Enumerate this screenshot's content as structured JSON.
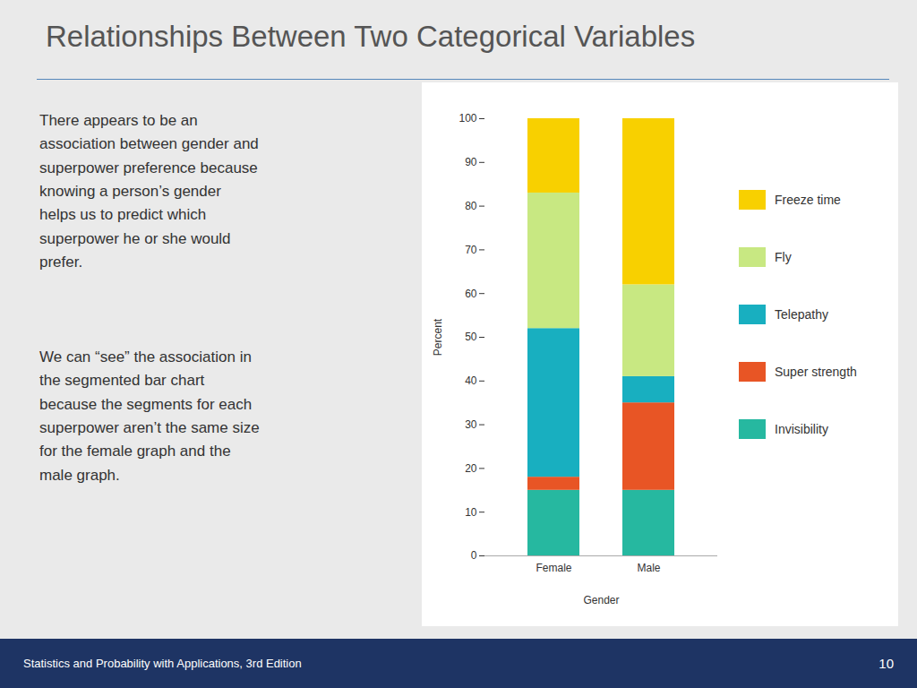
{
  "chart_data": {
    "type": "bar",
    "title": "Relationships Between Two Categorical Variables",
    "stacked": true,
    "categories": [
      "Female",
      "Male"
    ],
    "series": [
      {
        "name": "Invisibility",
        "color": "#26b8a0",
        "values": [
          15,
          15
        ]
      },
      {
        "name": "Super strength",
        "color": "#e85525",
        "values": [
          3,
          20
        ]
      },
      {
        "name": "Telepathy",
        "color": "#18afc0",
        "values": [
          34,
          6
        ]
      },
      {
        "name": "Fly",
        "color": "#c8e882",
        "values": [
          31,
          21
        ]
      },
      {
        "name": "Freeze time",
        "color": "#f8d000",
        "values": [
          17,
          38
        ]
      }
    ],
    "xlabel": "Gender",
    "ylabel": "Percent",
    "ylim": [
      0,
      100
    ],
    "yticks": [
      0,
      10,
      20,
      30,
      40,
      50,
      60,
      70,
      80,
      90,
      100
    ],
    "grid": false,
    "legend": "right",
    "annotations": [
      "There appears to be an\nassociation between gender and\nsuperpower preference because\nknowing a person’s gender\nhelps us to predict which\nsuperpower he or she would\nprefer.",
      "We can “see” the association in\nthe segmented bar chart\nbecause the segments for each\nsuperpower aren’t the same size\nfor the female graph and the\nmale graph.",
      "Statistics and Probability with Applications, 3rd Edition",
      "10"
    ]
  }
}
